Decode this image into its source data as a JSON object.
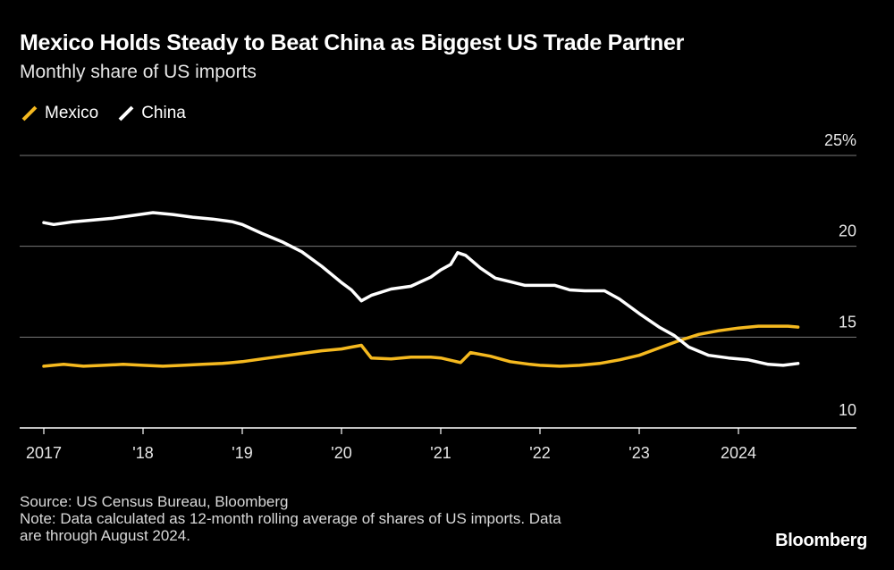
{
  "chart_data": {
    "type": "line",
    "title": "Mexico Holds Steady to Beat China as Biggest US Trade Partner",
    "subtitle": "Monthly share of US imports",
    "xlabel": "",
    "ylabel": "",
    "ylim": [
      10,
      25
    ],
    "xlim": [
      2017.0,
      2025.0
    ],
    "y_ticks": [
      {
        "value": 25,
        "label": "25%"
      },
      {
        "value": 20,
        "label": "20"
      },
      {
        "value": 15,
        "label": "15"
      },
      {
        "value": 10,
        "label": "10"
      }
    ],
    "x_ticks": [
      {
        "value": 2017,
        "label": "2017"
      },
      {
        "value": 2018,
        "label": "'18"
      },
      {
        "value": 2019,
        "label": "'19"
      },
      {
        "value": 2020,
        "label": "'20"
      },
      {
        "value": 2021,
        "label": "'21"
      },
      {
        "value": 2022,
        "label": "'22"
      },
      {
        "value": 2023,
        "label": "'23"
      },
      {
        "value": 2024,
        "label": "2024"
      }
    ],
    "legend_position": "top-left",
    "series": [
      {
        "name": "Mexico",
        "color": "#f5b91f",
        "points": [
          [
            2017.0,
            13.4
          ],
          [
            2017.2,
            13.5
          ],
          [
            2017.4,
            13.4
          ],
          [
            2017.6,
            13.45
          ],
          [
            2017.8,
            13.5
          ],
          [
            2018.0,
            13.45
          ],
          [
            2018.2,
            13.4
          ],
          [
            2018.4,
            13.45
          ],
          [
            2018.6,
            13.5
          ],
          [
            2018.8,
            13.55
          ],
          [
            2019.0,
            13.65
          ],
          [
            2019.2,
            13.8
          ],
          [
            2019.4,
            13.95
          ],
          [
            2019.6,
            14.1
          ],
          [
            2019.8,
            14.25
          ],
          [
            2020.0,
            14.35
          ],
          [
            2020.1,
            14.45
          ],
          [
            2020.2,
            14.55
          ],
          [
            2020.3,
            13.85
          ],
          [
            2020.5,
            13.8
          ],
          [
            2020.7,
            13.9
          ],
          [
            2020.9,
            13.9
          ],
          [
            2021.0,
            13.85
          ],
          [
            2021.2,
            13.6
          ],
          [
            2021.3,
            14.15
          ],
          [
            2021.5,
            13.95
          ],
          [
            2021.7,
            13.65
          ],
          [
            2021.9,
            13.5
          ],
          [
            2022.0,
            13.45
          ],
          [
            2022.2,
            13.4
          ],
          [
            2022.4,
            13.45
          ],
          [
            2022.6,
            13.55
          ],
          [
            2022.8,
            13.75
          ],
          [
            2023.0,
            14.0
          ],
          [
            2023.2,
            14.4
          ],
          [
            2023.4,
            14.8
          ],
          [
            2023.6,
            15.15
          ],
          [
            2023.8,
            15.35
          ],
          [
            2024.0,
            15.5
          ],
          [
            2024.2,
            15.6
          ],
          [
            2024.4,
            15.6
          ],
          [
            2024.5,
            15.6
          ],
          [
            2024.6,
            15.55
          ]
        ]
      },
      {
        "name": "China",
        "color": "#ffffff",
        "points": [
          [
            2017.0,
            21.3
          ],
          [
            2017.1,
            21.2
          ],
          [
            2017.3,
            21.35
          ],
          [
            2017.5,
            21.45
          ],
          [
            2017.7,
            21.55
          ],
          [
            2017.9,
            21.7
          ],
          [
            2018.1,
            21.85
          ],
          [
            2018.3,
            21.75
          ],
          [
            2018.5,
            21.6
          ],
          [
            2018.7,
            21.5
          ],
          [
            2018.9,
            21.35
          ],
          [
            2019.0,
            21.2
          ],
          [
            2019.2,
            20.7
          ],
          [
            2019.4,
            20.25
          ],
          [
            2019.6,
            19.7
          ],
          [
            2019.8,
            18.9
          ],
          [
            2020.0,
            18.0
          ],
          [
            2020.1,
            17.6
          ],
          [
            2020.2,
            17.0
          ],
          [
            2020.3,
            17.3
          ],
          [
            2020.5,
            17.65
          ],
          [
            2020.7,
            17.8
          ],
          [
            2020.9,
            18.3
          ],
          [
            2021.0,
            18.7
          ],
          [
            2021.1,
            19.0
          ],
          [
            2021.17,
            19.65
          ],
          [
            2021.25,
            19.5
          ],
          [
            2021.4,
            18.8
          ],
          [
            2021.55,
            18.25
          ],
          [
            2021.7,
            18.05
          ],
          [
            2021.85,
            17.85
          ],
          [
            2022.0,
            17.85
          ],
          [
            2022.15,
            17.85
          ],
          [
            2022.3,
            17.6
          ],
          [
            2022.45,
            17.55
          ],
          [
            2022.65,
            17.55
          ],
          [
            2022.8,
            17.1
          ],
          [
            2023.0,
            16.3
          ],
          [
            2023.2,
            15.55
          ],
          [
            2023.35,
            15.1
          ],
          [
            2023.5,
            14.45
          ],
          [
            2023.7,
            14.0
          ],
          [
            2023.9,
            13.85
          ],
          [
            2024.1,
            13.75
          ],
          [
            2024.3,
            13.5
          ],
          [
            2024.45,
            13.45
          ],
          [
            2024.6,
            13.55
          ]
        ]
      }
    ],
    "source": "Source: US Census Bureau, Bloomberg",
    "note_line1": "Note: Data calculated as 12-month rolling average of shares of US imports. Data",
    "note_line2": "are through August 2024."
  },
  "brand": "Bloomberg"
}
